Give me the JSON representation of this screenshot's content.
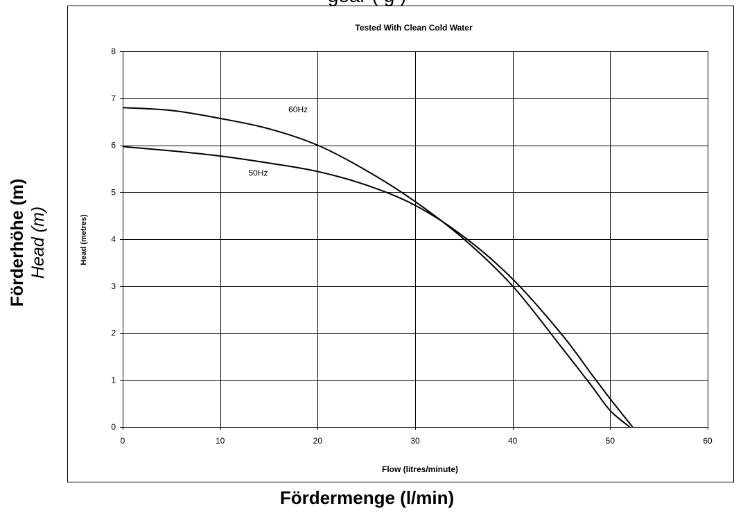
{
  "page": {
    "top_title_fragment": "gear  (  g   )",
    "outer_ylabel_de": "Förderhöhe (m)",
    "outer_ylabel_en": "Head (m)",
    "outer_xlabel": "Fördermenge (l/min)"
  },
  "chart_data": {
    "type": "line",
    "title": "Tested With Clean Cold Water",
    "xlabel": "Flow (litres/minute)",
    "ylabel": "Head (metres)",
    "xlim": [
      0,
      60
    ],
    "ylim": [
      0,
      8
    ],
    "xticks": [
      0,
      10,
      20,
      30,
      40,
      50,
      60
    ],
    "yticks": [
      0,
      1,
      2,
      3,
      4,
      5,
      6,
      7,
      8
    ],
    "grid": true,
    "legend": "none",
    "line_color": "#000000",
    "series": [
      {
        "name": "60Hz",
        "x": [
          0,
          5,
          10,
          15,
          20,
          25,
          30,
          35,
          40,
          45,
          48,
          50,
          52
        ],
        "y": [
          6.8,
          6.74,
          6.57,
          6.35,
          6.0,
          5.46,
          4.8,
          4.0,
          3.0,
          1.7,
          0.9,
          0.35,
          0.0
        ]
      },
      {
        "name": "50Hz",
        "x": [
          0,
          5,
          10,
          15,
          20,
          25,
          30,
          35,
          40,
          45,
          48,
          50,
          52.3
        ],
        "y": [
          5.97,
          5.88,
          5.77,
          5.62,
          5.44,
          5.15,
          4.72,
          4.05,
          3.15,
          1.98,
          1.15,
          0.6,
          0.0
        ]
      }
    ],
    "annotations": [
      {
        "text": "60Hz",
        "x": 17,
        "y": 6.7
      },
      {
        "text": "50Hz",
        "x": 12.9,
        "y": 5.35
      }
    ]
  }
}
